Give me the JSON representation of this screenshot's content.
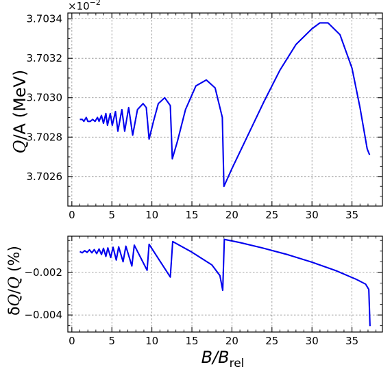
{
  "chart_data": [
    {
      "type": "line",
      "panel": "top",
      "ylabel_text": "Q/A (MeV)",
      "ylabel_parts": {
        "sym": "Q",
        "rest": "/A (MeV)"
      },
      "offset_text": {
        "base": "×10",
        "exp": "−2"
      },
      "xlim": [
        -0.5,
        38.8
      ],
      "ylim": [
        3.70245,
        3.70343
      ],
      "xticks": [
        0,
        5,
        10,
        15,
        20,
        25,
        30,
        35
      ],
      "xtick_labels": [
        "0",
        "5",
        "10",
        "15",
        "20",
        "25",
        "30",
        "35"
      ],
      "yticks": [
        3.7026,
        3.7028,
        3.703,
        3.7032,
        3.7034
      ],
      "ytick_labels": [
        "3.7026",
        "3.7028",
        "3.7030",
        "3.7032",
        "3.7034"
      ],
      "grid": true,
      "series": [
        {
          "color": "#0000ee",
          "points": [
            [
              1.0,
              3.70289
            ],
            [
              1.3,
              3.70289
            ],
            [
              1.5,
              3.70288
            ],
            [
              1.8,
              3.7029
            ],
            [
              2.0,
              3.70288
            ],
            [
              2.3,
              3.70288
            ],
            [
              2.6,
              3.70289
            ],
            [
              2.9,
              3.70288
            ],
            [
              3.2,
              3.7029
            ],
            [
              3.4,
              3.70288
            ],
            [
              3.7,
              3.70291
            ],
            [
              3.95,
              3.70287
            ],
            [
              4.25,
              3.70292
            ],
            [
              4.45,
              3.70286
            ],
            [
              4.8,
              3.70292
            ],
            [
              5.05,
              3.70286
            ],
            [
              5.45,
              3.70293
            ],
            [
              5.75,
              3.70283
            ],
            [
              6.25,
              3.70294
            ],
            [
              6.6,
              3.70283
            ],
            [
              7.1,
              3.70295
            ],
            [
              7.6,
              3.70281
            ],
            [
              8.2,
              3.70294
            ],
            [
              8.9,
              3.70297
            ],
            [
              9.3,
              3.70295
            ],
            [
              9.65,
              3.70279
            ],
            [
              10.2,
              3.70288
            ],
            [
              10.8,
              3.70297
            ],
            [
              11.6,
              3.703
            ],
            [
              12.3,
              3.70296
            ],
            [
              12.55,
              3.70269
            ],
            [
              13.2,
              3.70278
            ],
            [
              14.2,
              3.70294
            ],
            [
              15.5,
              3.70306
            ],
            [
              16.8,
              3.70309
            ],
            [
              17.9,
              3.70305
            ],
            [
              18.8,
              3.7029
            ],
            [
              19.0,
              3.70255
            ],
            [
              20.0,
              3.70264
            ],
            [
              22.0,
              3.70281
            ],
            [
              24.0,
              3.70298
            ],
            [
              26.0,
              3.70314
            ],
            [
              28.0,
              3.70327
            ],
            [
              30.0,
              3.70335
            ],
            [
              31.0,
              3.70338
            ],
            [
              32.0,
              3.70338
            ],
            [
              33.5,
              3.70332
            ],
            [
              35.0,
              3.70315
            ],
            [
              36.0,
              3.70295
            ],
            [
              36.9,
              3.70274
            ],
            [
              37.2,
              3.70271
            ]
          ]
        }
      ]
    },
    {
      "type": "line",
      "panel": "bottom",
      "ylabel_text": "δQ/Q (%)",
      "ylabel_parts": {
        "delta": "δ",
        "sym": "Q",
        "slash": "/",
        "sym2": "Q",
        "rest": " (%)"
      },
      "xlabel_text": "B/Brel",
      "xlabel_parts": {
        "main": "B/B",
        "sub": "rel"
      },
      "xlim": [
        -0.5,
        38.8
      ],
      "ylim": [
        -0.0048,
        -0.0003
      ],
      "xticks": [
        0,
        5,
        10,
        15,
        20,
        25,
        30,
        35
      ],
      "xtick_labels": [
        "0",
        "5",
        "10",
        "15",
        "20",
        "25",
        "30",
        "35"
      ],
      "yticks": [
        -0.002,
        -0.004
      ],
      "ytick_labels": [
        "−0.002",
        "−0.004"
      ],
      "grid": true,
      "series": [
        {
          "color": "#0000ee",
          "points": [
            [
              1.0,
              -0.00102
            ],
            [
              1.3,
              -0.00108
            ],
            [
              1.6,
              -0.00098
            ],
            [
              1.9,
              -0.00106
            ],
            [
              2.2,
              -0.00094
            ],
            [
              2.5,
              -0.00108
            ],
            [
              2.8,
              -0.00093
            ],
            [
              3.1,
              -0.00112
            ],
            [
              3.4,
              -0.0009
            ],
            [
              3.7,
              -0.00116
            ],
            [
              3.95,
              -0.00087
            ],
            [
              4.25,
              -0.00125
            ],
            [
              4.5,
              -0.00085
            ],
            [
              4.85,
              -0.0013
            ],
            [
              5.15,
              -0.00082
            ],
            [
              5.55,
              -0.00142
            ],
            [
              5.85,
              -0.0008
            ],
            [
              6.4,
              -0.0015
            ],
            [
              6.75,
              -0.00077
            ],
            [
              7.5,
              -0.0017
            ],
            [
              7.8,
              -0.00072
            ],
            [
              9.4,
              -0.0019
            ],
            [
              9.65,
              -0.00068
            ],
            [
              12.3,
              -0.00222
            ],
            [
              12.6,
              -0.00055
            ],
            [
              15.0,
              -0.00105
            ],
            [
              17.5,
              -0.00165
            ],
            [
              18.5,
              -0.00215
            ],
            [
              18.85,
              -0.00284
            ],
            [
              19.05,
              -0.00045
            ],
            [
              21.0,
              -0.0006
            ],
            [
              24.0,
              -0.00087
            ],
            [
              27.0,
              -0.00117
            ],
            [
              30.0,
              -0.00152
            ],
            [
              33.0,
              -0.00192
            ],
            [
              35.5,
              -0.00232
            ],
            [
              36.7,
              -0.00255
            ],
            [
              37.1,
              -0.0028
            ],
            [
              37.25,
              -0.00452
            ]
          ]
        }
      ]
    }
  ]
}
